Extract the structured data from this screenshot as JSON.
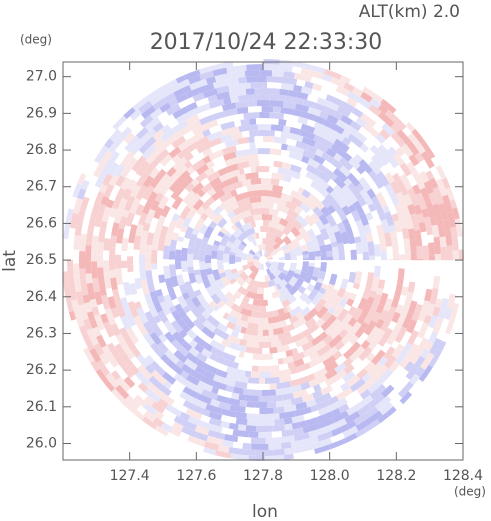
{
  "chart_data": {
    "type": "radar-field",
    "title": "2017/10/24 22:33:30",
    "subtitle": "ALT(km)  2.0",
    "x_label": "lon",
    "y_label": "lat",
    "x_unit": "(deg)",
    "y_unit": "(deg)",
    "xlim": [
      127.2,
      128.4
    ],
    "ylim": [
      25.955,
      27.04
    ],
    "xticks": [
      127.4,
      127.6,
      127.8,
      {
        "value": 128.0,
        "label": "128.0"
      },
      128.2,
      128.4
    ],
    "yticks": [
      {
        "value": 26.0,
        "label": "26.0"
      },
      26.1,
      26.2,
      26.3,
      26.4,
      26.5,
      26.6,
      26.7,
      26.8,
      26.9,
      {
        "value": 27.0,
        "label": "27.0"
      }
    ]
  }
}
